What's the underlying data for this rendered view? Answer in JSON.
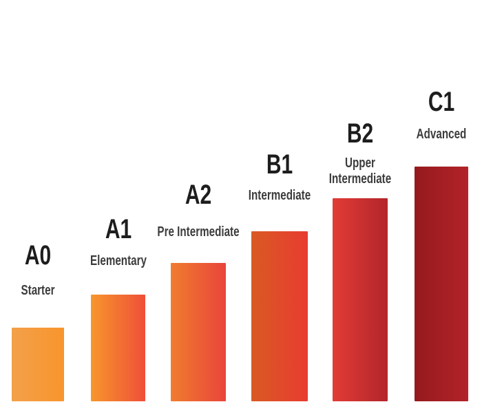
{
  "page": {
    "background": "#ffffff"
  },
  "chart_data": {
    "type": "bar",
    "categories": [
      "A0",
      "A1",
      "A2",
      "B1",
      "B2",
      "C1"
    ],
    "category_sublabels": [
      "Starter",
      "Elementary",
      "Pre Intermediate",
      "Intermediate",
      "Upper\nIntermediate",
      "Advanced"
    ],
    "values": [
      107,
      155,
      201,
      247,
      295,
      341
    ],
    "value_note": "relative bar heights in px; chart has no numeric axis",
    "bar_gradients": [
      {
        "from": "#F3A04B",
        "to": "#F8952C"
      },
      {
        "from": "#F7962C",
        "to": "#EF4F38"
      },
      {
        "from": "#F07C2E",
        "to": "#E9453A"
      },
      {
        "from": "#D95A23",
        "to": "#E83C30"
      },
      {
        "from": "#E23B36",
        "to": "#B2262B"
      },
      {
        "from": "#951A1D",
        "to": "#B22328"
      }
    ],
    "gradient_direction": "left-to-right",
    "code_label_color": "#1d1d1d",
    "sublabel_color": "#3c3c3c",
    "background": "#ffffff",
    "axes": "none",
    "grid": false,
    "legend": false,
    "xlabel": "",
    "ylabel": "",
    "title": ""
  }
}
